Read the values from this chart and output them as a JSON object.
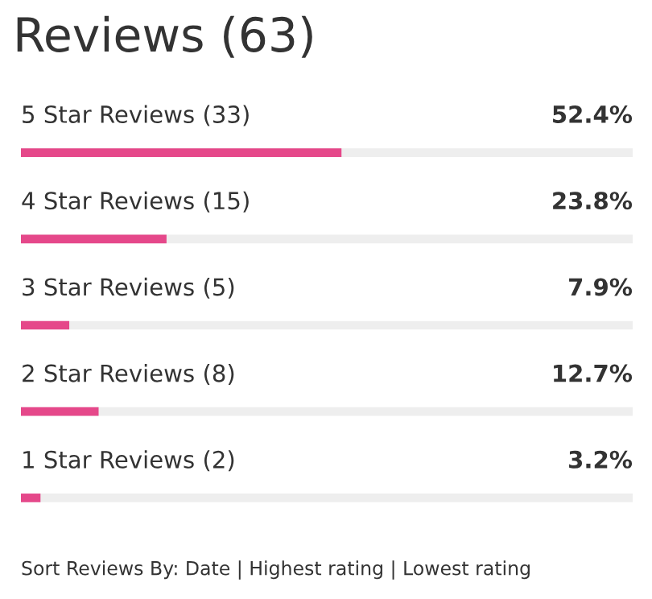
{
  "chart_data": {
    "type": "bar",
    "orientation": "horizontal",
    "title": "Reviews (63)",
    "categories": [
      "5 Star Reviews (33)",
      "4 Star Reviews (15)",
      "3 Star Reviews (5)",
      "2 Star Reviews (8)",
      "1 Star Reviews (2)"
    ],
    "values": [
      52.4,
      23.8,
      7.9,
      12.7,
      3.2
    ],
    "value_labels": [
      "52.4%",
      "23.8%",
      "7.9%",
      "12.7%",
      "3.2%"
    ],
    "color": "#e5488a",
    "xlim": [
      0,
      100
    ],
    "annotations": [
      "Sort Reviews By: Date | Highest rating | Lowest rating"
    ]
  }
}
